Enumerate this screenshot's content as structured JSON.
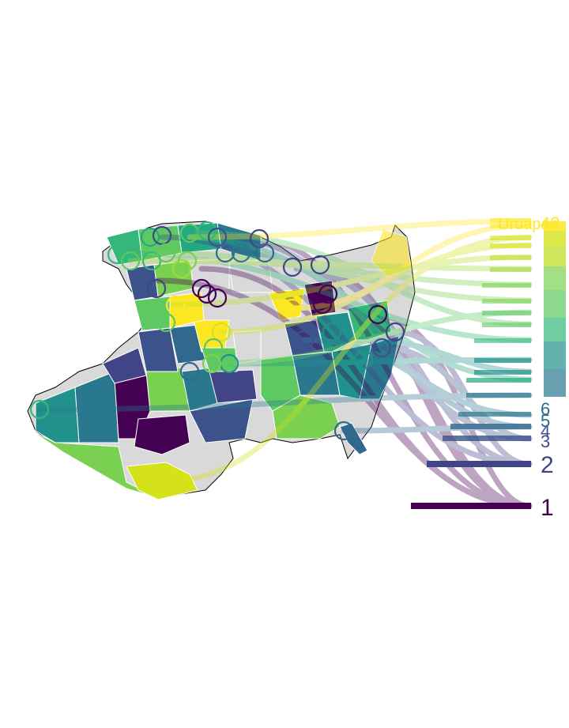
{
  "map": {
    "labels": {
      "top_name": "Uruapan",
      "top_rank": "42",
      "visible_ranks": [
        "1",
        "2",
        "3",
        "4",
        "5",
        "6"
      ]
    },
    "palette": {
      "rank_low": "#440154",
      "rank_mid_low": "#3b528b",
      "rank_mid": "#21918c",
      "rank_mid_high": "#5ec962",
      "rank_high": "#fde725",
      "no_data": "#d9d9d9",
      "boundary": "#ffffff",
      "outline": "#000000"
    }
  }
}
